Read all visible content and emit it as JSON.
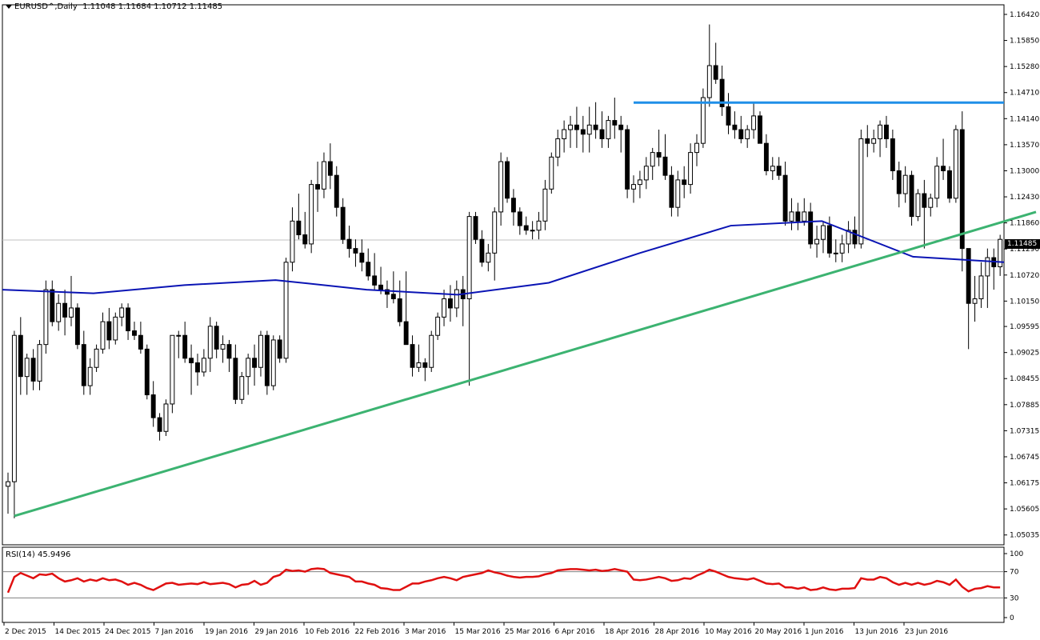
{
  "window": {
    "symbol_label": "EURUSD^,Daily",
    "ohlc_label": "1.11048 1.11684 1.10712 1.11485",
    "menu_icon": "triangle-down-icon",
    "current_price": "1.11485"
  },
  "rsi": {
    "label": "RSI(14) 45.9496",
    "levels": [
      "100",
      "70",
      "30",
      "0"
    ]
  },
  "colors": {
    "up_candle": "#ffffff",
    "down_candle": "#000000",
    "ma_line": "#0a14b4",
    "trend_line": "#3cb371",
    "resistance_line": "#1f8fe8",
    "rsi_line": "#e01010"
  },
  "chart_data": [
    {
      "type": "candlestick",
      "title": "EURUSD^,Daily",
      "ylim": [
        1.0503,
        1.1642
      ],
      "y_ticks": [
        "1.16420",
        "1.15850",
        "1.15280",
        "1.14710",
        "1.14140",
        "1.13570",
        "1.13000",
        "1.12430",
        "1.11860",
        "1.11290",
        "1.10720",
        "1.10150",
        "1.09595",
        "1.09025",
        "1.08455",
        "1.07885",
        "1.07315",
        "1.06745",
        "1.06175",
        "1.05605",
        "1.05035"
      ],
      "x_ticks": [
        "2 Dec 2015",
        "14 Dec 2015",
        "24 Dec 2015",
        "7 Jan 2016",
        "19 Jan 2016",
        "29 Jan 2016",
        "10 Feb 2016",
        "22 Feb 2016",
        "3 Mar 2016",
        "15 Mar 2016",
        "25 Mar 2016",
        "6 Apr 2016",
        "18 Apr 2016",
        "28 Apr 2016",
        "10 May 2016",
        "20 May 2016",
        "1 Jun 2016",
        "13 Jun 2016",
        "23 Jun 2016"
      ],
      "candles": [
        [
          1.061,
          1.064,
          1.055,
          1.062
        ],
        [
          1.062,
          1.095,
          1.054,
          1.094
        ],
        [
          1.094,
          1.098,
          1.081,
          1.085
        ],
        [
          1.085,
          1.09,
          1.081,
          1.089
        ],
        [
          1.089,
          1.091,
          1.082,
          1.084
        ],
        [
          1.084,
          1.093,
          1.082,
          1.092
        ],
        [
          1.092,
          1.106,
          1.09,
          1.104
        ],
        [
          1.104,
          1.106,
          1.096,
          1.097
        ],
        [
          1.097,
          1.103,
          1.095,
          1.101
        ],
        [
          1.101,
          1.104,
          1.094,
          1.098
        ],
        [
          1.098,
          1.107,
          1.096,
          1.1
        ],
        [
          1.1,
          1.101,
          1.091,
          1.092
        ],
        [
          1.092,
          1.095,
          1.081,
          1.083
        ],
        [
          1.083,
          1.089,
          1.081,
          1.087
        ],
        [
          1.087,
          1.092,
          1.086,
          1.091
        ],
        [
          1.091,
          1.099,
          1.09,
          1.097
        ],
        [
          1.097,
          1.1,
          1.091,
          1.093
        ],
        [
          1.093,
          1.099,
          1.092,
          1.098
        ],
        [
          1.098,
          1.101,
          1.096,
          1.1
        ],
        [
          1.1,
          1.101,
          1.093,
          1.095
        ],
        [
          1.095,
          1.097,
          1.093,
          1.094
        ],
        [
          1.094,
          1.097,
          1.09,
          1.091
        ],
        [
          1.091,
          1.092,
          1.08,
          1.081
        ],
        [
          1.081,
          1.084,
          1.074,
          1.076
        ],
        [
          1.076,
          1.077,
          1.071,
          1.073
        ],
        [
          1.073,
          1.08,
          1.072,
          1.079
        ],
        [
          1.079,
          1.094,
          1.077,
          1.094
        ],
        [
          1.094,
          1.095,
          1.089,
          1.094
        ],
        [
          1.094,
          1.097,
          1.088,
          1.089
        ],
        [
          1.089,
          1.092,
          1.081,
          1.088
        ],
        [
          1.088,
          1.09,
          1.083,
          1.086
        ],
        [
          1.086,
          1.091,
          1.085,
          1.089
        ],
        [
          1.089,
          1.098,
          1.086,
          1.096
        ],
        [
          1.096,
          1.097,
          1.089,
          1.091
        ],
        [
          1.091,
          1.094,
          1.088,
          1.092
        ],
        [
          1.092,
          1.093,
          1.086,
          1.089
        ],
        [
          1.089,
          1.092,
          1.079,
          1.08
        ],
        [
          1.08,
          1.086,
          1.079,
          1.085
        ],
        [
          1.085,
          1.09,
          1.081,
          1.089
        ],
        [
          1.089,
          1.092,
          1.083,
          1.087
        ],
        [
          1.087,
          1.095,
          1.085,
          1.094
        ],
        [
          1.094,
          1.095,
          1.081,
          1.083
        ],
        [
          1.083,
          1.094,
          1.082,
          1.093
        ],
        [
          1.093,
          1.094,
          1.088,
          1.089
        ],
        [
          1.089,
          1.111,
          1.088,
          1.11
        ],
        [
          1.11,
          1.122,
          1.108,
          1.119
        ],
        [
          1.119,
          1.125,
          1.115,
          1.116
        ],
        [
          1.116,
          1.121,
          1.113,
          1.114
        ],
        [
          1.114,
          1.128,
          1.112,
          1.127
        ],
        [
          1.127,
          1.132,
          1.121,
          1.126
        ],
        [
          1.126,
          1.134,
          1.124,
          1.132
        ],
        [
          1.132,
          1.136,
          1.126,
          1.129
        ],
        [
          1.129,
          1.131,
          1.12,
          1.122
        ],
        [
          1.122,
          1.124,
          1.114,
          1.115
        ],
        [
          1.115,
          1.118,
          1.111,
          1.113
        ],
        [
          1.113,
          1.115,
          1.109,
          1.112
        ],
        [
          1.112,
          1.115,
          1.108,
          1.11
        ],
        [
          1.11,
          1.113,
          1.106,
          1.107
        ],
        [
          1.107,
          1.112,
          1.104,
          1.105
        ],
        [
          1.105,
          1.109,
          1.103,
          1.104
        ],
        [
          1.104,
          1.106,
          1.1,
          1.103
        ],
        [
          1.103,
          1.108,
          1.101,
          1.102
        ],
        [
          1.102,
          1.106,
          1.096,
          1.097
        ],
        [
          1.097,
          1.108,
          1.092,
          1.092
        ],
        [
          1.092,
          1.094,
          1.085,
          1.087
        ],
        [
          1.087,
          1.092,
          1.086,
          1.088
        ],
        [
          1.088,
          1.089,
          1.084,
          1.087
        ],
        [
          1.087,
          1.095,
          1.086,
          1.094
        ],
        [
          1.094,
          1.099,
          1.093,
          1.098
        ],
        [
          1.098,
          1.104,
          1.096,
          1.102
        ],
        [
          1.102,
          1.105,
          1.097,
          1.1
        ],
        [
          1.1,
          1.106,
          1.098,
          1.104
        ],
        [
          1.104,
          1.107,
          1.096,
          1.102
        ],
        [
          1.102,
          1.121,
          1.083,
          1.12
        ],
        [
          1.12,
          1.121,
          1.114,
          1.115
        ],
        [
          1.115,
          1.117,
          1.109,
          1.11
        ],
        [
          1.11,
          1.114,
          1.108,
          1.112
        ],
        [
          1.112,
          1.122,
          1.106,
          1.121
        ],
        [
          1.121,
          1.134,
          1.118,
          1.132
        ],
        [
          1.132,
          1.133,
          1.123,
          1.124
        ],
        [
          1.124,
          1.126,
          1.118,
          1.121
        ],
        [
          1.121,
          1.122,
          1.116,
          1.118
        ],
        [
          1.118,
          1.12,
          1.116,
          1.117
        ],
        [
          1.117,
          1.119,
          1.115,
          1.117
        ],
        [
          1.117,
          1.121,
          1.115,
          1.119
        ],
        [
          1.119,
          1.128,
          1.117,
          1.126
        ],
        [
          1.126,
          1.134,
          1.125,
          1.133
        ],
        [
          1.133,
          1.139,
          1.131,
          1.137
        ],
        [
          1.137,
          1.141,
          1.134,
          1.139
        ],
        [
          1.139,
          1.142,
          1.135,
          1.14
        ],
        [
          1.14,
          1.144,
          1.135,
          1.139
        ],
        [
          1.139,
          1.142,
          1.134,
          1.138
        ],
        [
          1.138,
          1.144,
          1.134,
          1.14
        ],
        [
          1.14,
          1.145,
          1.137,
          1.139
        ],
        [
          1.139,
          1.143,
          1.135,
          1.137
        ],
        [
          1.137,
          1.142,
          1.135,
          1.141
        ],
        [
          1.141,
          1.146,
          1.137,
          1.14
        ],
        [
          1.14,
          1.142,
          1.134,
          1.139
        ],
        [
          1.139,
          1.14,
          1.124,
          1.126
        ],
        [
          1.126,
          1.129,
          1.123,
          1.127
        ],
        [
          1.127,
          1.13,
          1.124,
          1.128
        ],
        [
          1.128,
          1.133,
          1.126,
          1.131
        ],
        [
          1.131,
          1.135,
          1.128,
          1.134
        ],
        [
          1.134,
          1.139,
          1.131,
          1.133
        ],
        [
          1.133,
          1.138,
          1.128,
          1.129
        ],
        [
          1.129,
          1.131,
          1.12,
          1.122
        ],
        [
          1.122,
          1.13,
          1.12,
          1.128
        ],
        [
          1.128,
          1.131,
          1.124,
          1.127
        ],
        [
          1.127,
          1.136,
          1.125,
          1.134
        ],
        [
          1.134,
          1.138,
          1.131,
          1.136
        ],
        [
          1.136,
          1.148,
          1.135,
          1.146
        ],
        [
          1.146,
          1.162,
          1.144,
          1.153
        ],
        [
          1.153,
          1.158,
          1.149,
          1.15
        ],
        [
          1.15,
          1.153,
          1.142,
          1.144
        ],
        [
          1.144,
          1.147,
          1.138,
          1.14
        ],
        [
          1.14,
          1.143,
          1.137,
          1.139
        ],
        [
          1.139,
          1.142,
          1.136,
          1.137
        ],
        [
          1.137,
          1.14,
          1.135,
          1.139
        ],
        [
          1.139,
          1.145,
          1.137,
          1.142
        ],
        [
          1.142,
          1.143,
          1.136,
          1.136
        ],
        [
          1.136,
          1.138,
          1.129,
          1.13
        ],
        [
          1.13,
          1.133,
          1.128,
          1.131
        ],
        [
          1.131,
          1.133,
          1.128,
          1.129
        ],
        [
          1.129,
          1.132,
          1.118,
          1.119
        ],
        [
          1.119,
          1.124,
          1.117,
          1.121
        ],
        [
          1.121,
          1.123,
          1.117,
          1.119
        ],
        [
          1.119,
          1.124,
          1.118,
          1.121
        ],
        [
          1.121,
          1.123,
          1.113,
          1.114
        ],
        [
          1.114,
          1.118,
          1.111,
          1.115
        ],
        [
          1.115,
          1.119,
          1.112,
          1.118
        ],
        [
          1.118,
          1.12,
          1.111,
          1.112
        ],
        [
          1.112,
          1.115,
          1.11,
          1.112
        ],
        [
          1.112,
          1.116,
          1.11,
          1.114
        ],
        [
          1.114,
          1.119,
          1.112,
          1.117
        ],
        [
          1.117,
          1.12,
          1.113,
          1.114
        ],
        [
          1.114,
          1.139,
          1.113,
          1.137
        ],
        [
          1.137,
          1.14,
          1.133,
          1.136
        ],
        [
          1.136,
          1.139,
          1.134,
          1.137
        ],
        [
          1.137,
          1.141,
          1.133,
          1.14
        ],
        [
          1.14,
          1.142,
          1.135,
          1.137
        ],
        [
          1.137,
          1.139,
          1.128,
          1.13
        ],
        [
          1.13,
          1.132,
          1.122,
          1.125
        ],
        [
          1.125,
          1.131,
          1.123,
          1.129
        ],
        [
          1.129,
          1.13,
          1.118,
          1.12
        ],
        [
          1.12,
          1.126,
          1.119,
          1.125
        ],
        [
          1.125,
          1.128,
          1.113,
          1.122
        ],
        [
          1.122,
          1.125,
          1.12,
          1.124
        ],
        [
          1.124,
          1.133,
          1.122,
          1.131
        ],
        [
          1.131,
          1.137,
          1.128,
          1.13
        ],
        [
          1.13,
          1.131,
          1.123,
          1.124
        ],
        [
          1.124,
          1.14,
          1.123,
          1.139
        ],
        [
          1.139,
          1.143,
          1.108,
          1.113
        ],
        [
          1.113,
          1.113,
          1.091,
          1.101
        ],
        [
          1.101,
          1.107,
          1.097,
          1.102
        ],
        [
          1.102,
          1.11,
          1.1,
          1.107
        ],
        [
          1.107,
          1.113,
          1.1,
          1.111
        ],
        [
          1.111,
          1.113,
          1.104,
          1.109
        ],
        [
          1.109,
          1.116,
          1.107,
          1.115
        ]
      ],
      "overlays": {
        "moving_average": [
          1.104,
          1.1032,
          1.105,
          1.1061,
          1.104,
          1.1029,
          1.1055,
          1.112,
          1.118,
          1.119,
          1.1112,
          1.11
        ],
        "resistance_level": 1.1449,
        "trend_line": {
          "from": [
            1,
            1.0545
          ],
          "to": [
            161,
            1.1203
          ]
        }
      }
    },
    {
      "type": "line",
      "title": "RSI(14) 45.9496",
      "ylim": [
        0,
        100
      ],
      "levels": [
        70,
        30
      ],
      "values": [
        38,
        62,
        68,
        64,
        60,
        66,
        65,
        67,
        60,
        55,
        57,
        60,
        55,
        58,
        56,
        60,
        57,
        58,
        55,
        50,
        53,
        50,
        45,
        42,
        47,
        52,
        53,
        50,
        51,
        52,
        51,
        54,
        51,
        52,
        53,
        51,
        46,
        50,
        51,
        56,
        50,
        53,
        62,
        65,
        73,
        71,
        72,
        70,
        74,
        75,
        74,
        68,
        66,
        64,
        62,
        55,
        55,
        52,
        50,
        45,
        44,
        42,
        42,
        47,
        52,
        52,
        55,
        57,
        60,
        62,
        60,
        57,
        62,
        64,
        66,
        68,
        72,
        69,
        67,
        64,
        62,
        61,
        62,
        62,
        63,
        66,
        68,
        72,
        73,
        74,
        74,
        73,
        72,
        73,
        71,
        72,
        74,
        72,
        70,
        58,
        57,
        58,
        60,
        62,
        60,
        56,
        57,
        60,
        59,
        64,
        68,
        73,
        70,
        66,
        62,
        60,
        59,
        58,
        60,
        56,
        52,
        51,
        52,
        46,
        46,
        44,
        46,
        42,
        43,
        46,
        43,
        42,
        44,
        44,
        45,
        60,
        58,
        58,
        62,
        60,
        54,
        50,
        53,
        50,
        53,
        50,
        52,
        56,
        54,
        50,
        58,
        47,
        40,
        44,
        45,
        48,
        46,
        46
      ]
    }
  ]
}
